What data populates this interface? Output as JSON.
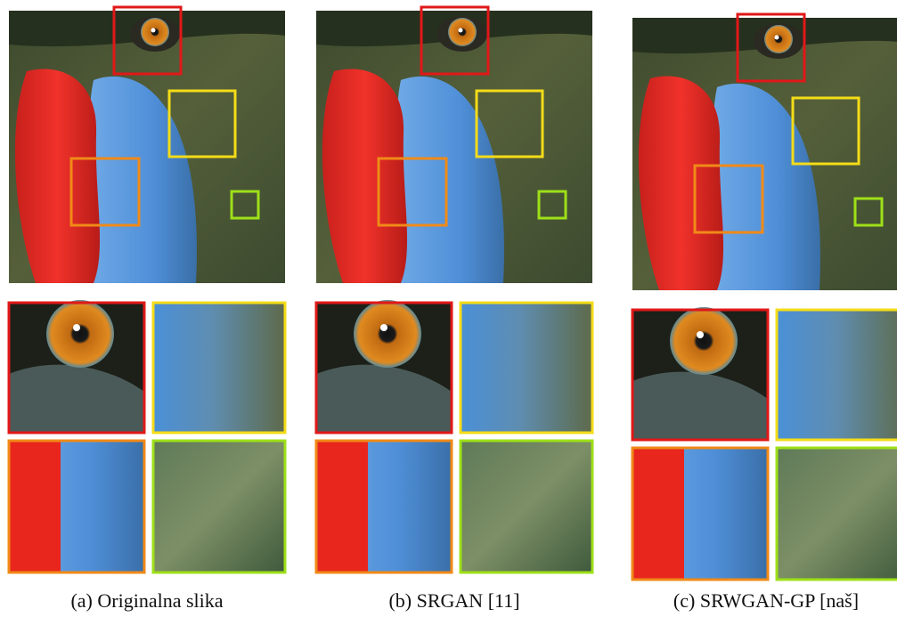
{
  "captions": [
    "(a) Originalna slika",
    "(b) SRGAN [11]",
    "(c) SRWGAN-GP [naš]"
  ]
}
